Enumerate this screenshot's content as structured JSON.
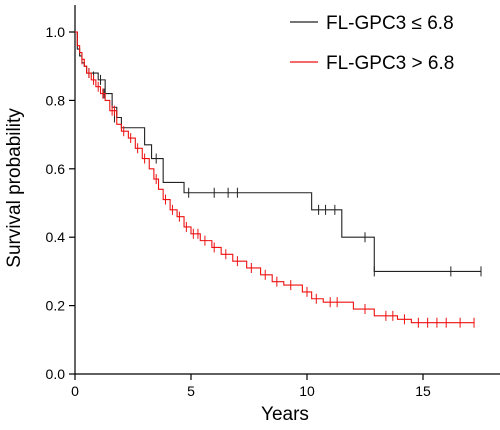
{
  "chart_data": {
    "type": "line",
    "subtype": "kaplan-meier",
    "xlabel": "Years",
    "ylabel": "Survival probability",
    "xlim": [
      0,
      18
    ],
    "ylim": [
      0,
      1.0
    ],
    "xticks": [
      0,
      5,
      10,
      15
    ],
    "xtick_labels": [
      "0",
      "5",
      "10",
      "15"
    ],
    "yticks": [
      0.0,
      0.2,
      0.4,
      0.6,
      0.8,
      1.0
    ],
    "ytick_labels": [
      "0.0",
      "0.2",
      "0.4",
      "0.6",
      "0.8",
      "1.0"
    ],
    "grid": false,
    "legend_position": "top-right",
    "series": [
      {
        "name": "FL-GPC3 ≤ 6.8",
        "color": "#222222",
        "steps": [
          [
            0,
            1.0
          ],
          [
            0.1,
            0.95
          ],
          [
            0.2,
            0.93
          ],
          [
            0.3,
            0.91
          ],
          [
            0.4,
            0.9
          ],
          [
            0.5,
            0.88
          ],
          [
            1.0,
            0.86
          ],
          [
            1.3,
            0.82
          ],
          [
            1.6,
            0.78
          ],
          [
            1.8,
            0.75
          ],
          [
            2.0,
            0.72
          ],
          [
            3.0,
            0.67
          ],
          [
            3.3,
            0.63
          ],
          [
            3.8,
            0.56
          ],
          [
            4.7,
            0.53
          ],
          [
            10.2,
            0.48
          ],
          [
            11.5,
            0.4
          ],
          [
            12.9,
            0.3
          ],
          [
            17.5,
            0.3
          ]
        ],
        "censored": [
          [
            0.6,
            0.88
          ],
          [
            0.8,
            0.87
          ],
          [
            1.1,
            0.86
          ],
          [
            1.25,
            0.82
          ],
          [
            1.7,
            0.75
          ],
          [
            3.5,
            0.63
          ],
          [
            4.9,
            0.53
          ],
          [
            6.0,
            0.53
          ],
          [
            6.6,
            0.53
          ],
          [
            7.0,
            0.53
          ],
          [
            10.5,
            0.48
          ],
          [
            10.8,
            0.48
          ],
          [
            11.2,
            0.48
          ],
          [
            12.5,
            0.4
          ],
          [
            12.9,
            0.3
          ],
          [
            16.2,
            0.3
          ],
          [
            17.5,
            0.3
          ]
        ]
      },
      {
        "name": "FL-GPC3 > 6.8",
        "color": "#ee1111",
        "steps": [
          [
            0,
            1.0
          ],
          [
            0.1,
            0.96
          ],
          [
            0.2,
            0.94
          ],
          [
            0.3,
            0.92
          ],
          [
            0.4,
            0.9
          ],
          [
            0.5,
            0.88
          ],
          [
            0.7,
            0.86
          ],
          [
            0.9,
            0.84
          ],
          [
            1.1,
            0.82
          ],
          [
            1.3,
            0.8
          ],
          [
            1.5,
            0.77
          ],
          [
            1.8,
            0.73
          ],
          [
            2.0,
            0.71
          ],
          [
            2.3,
            0.69
          ],
          [
            2.6,
            0.66
          ],
          [
            2.9,
            0.63
          ],
          [
            3.2,
            0.6
          ],
          [
            3.4,
            0.57
          ],
          [
            3.6,
            0.54
          ],
          [
            3.8,
            0.51
          ],
          [
            4.1,
            0.48
          ],
          [
            4.4,
            0.46
          ],
          [
            4.7,
            0.43
          ],
          [
            5.0,
            0.41
          ],
          [
            5.4,
            0.39
          ],
          [
            5.9,
            0.37
          ],
          [
            6.3,
            0.35
          ],
          [
            6.8,
            0.33
          ],
          [
            7.4,
            0.31
          ],
          [
            8.0,
            0.29
          ],
          [
            8.5,
            0.27
          ],
          [
            9.0,
            0.26
          ],
          [
            9.8,
            0.24
          ],
          [
            10.2,
            0.22
          ],
          [
            10.7,
            0.21
          ],
          [
            12.0,
            0.19
          ],
          [
            12.9,
            0.17
          ],
          [
            13.9,
            0.16
          ],
          [
            14.5,
            0.15
          ],
          [
            17.2,
            0.15
          ]
        ],
        "censored": [
          [
            0.3,
            0.92
          ],
          [
            0.6,
            0.88
          ],
          [
            0.8,
            0.86
          ],
          [
            1.0,
            0.84
          ],
          [
            1.2,
            0.82
          ],
          [
            1.6,
            0.77
          ],
          [
            1.7,
            0.77
          ],
          [
            2.1,
            0.71
          ],
          [
            2.4,
            0.69
          ],
          [
            2.7,
            0.66
          ],
          [
            3.0,
            0.63
          ],
          [
            3.5,
            0.57
          ],
          [
            3.9,
            0.51
          ],
          [
            4.2,
            0.48
          ],
          [
            4.5,
            0.46
          ],
          [
            4.8,
            0.43
          ],
          [
            5.1,
            0.41
          ],
          [
            5.3,
            0.41
          ],
          [
            5.6,
            0.39
          ],
          [
            6.0,
            0.37
          ],
          [
            6.5,
            0.35
          ],
          [
            7.0,
            0.33
          ],
          [
            7.6,
            0.31
          ],
          [
            8.2,
            0.29
          ],
          [
            8.7,
            0.27
          ],
          [
            9.3,
            0.26
          ],
          [
            10.0,
            0.24
          ],
          [
            10.4,
            0.22
          ],
          [
            11.0,
            0.21
          ],
          [
            11.3,
            0.21
          ],
          [
            12.5,
            0.19
          ],
          [
            13.4,
            0.17
          ],
          [
            13.7,
            0.17
          ],
          [
            14.2,
            0.16
          ],
          [
            14.8,
            0.15
          ],
          [
            15.2,
            0.15
          ],
          [
            15.6,
            0.15
          ],
          [
            16.0,
            0.15
          ],
          [
            16.6,
            0.15
          ],
          [
            17.2,
            0.15
          ]
        ]
      }
    ]
  }
}
